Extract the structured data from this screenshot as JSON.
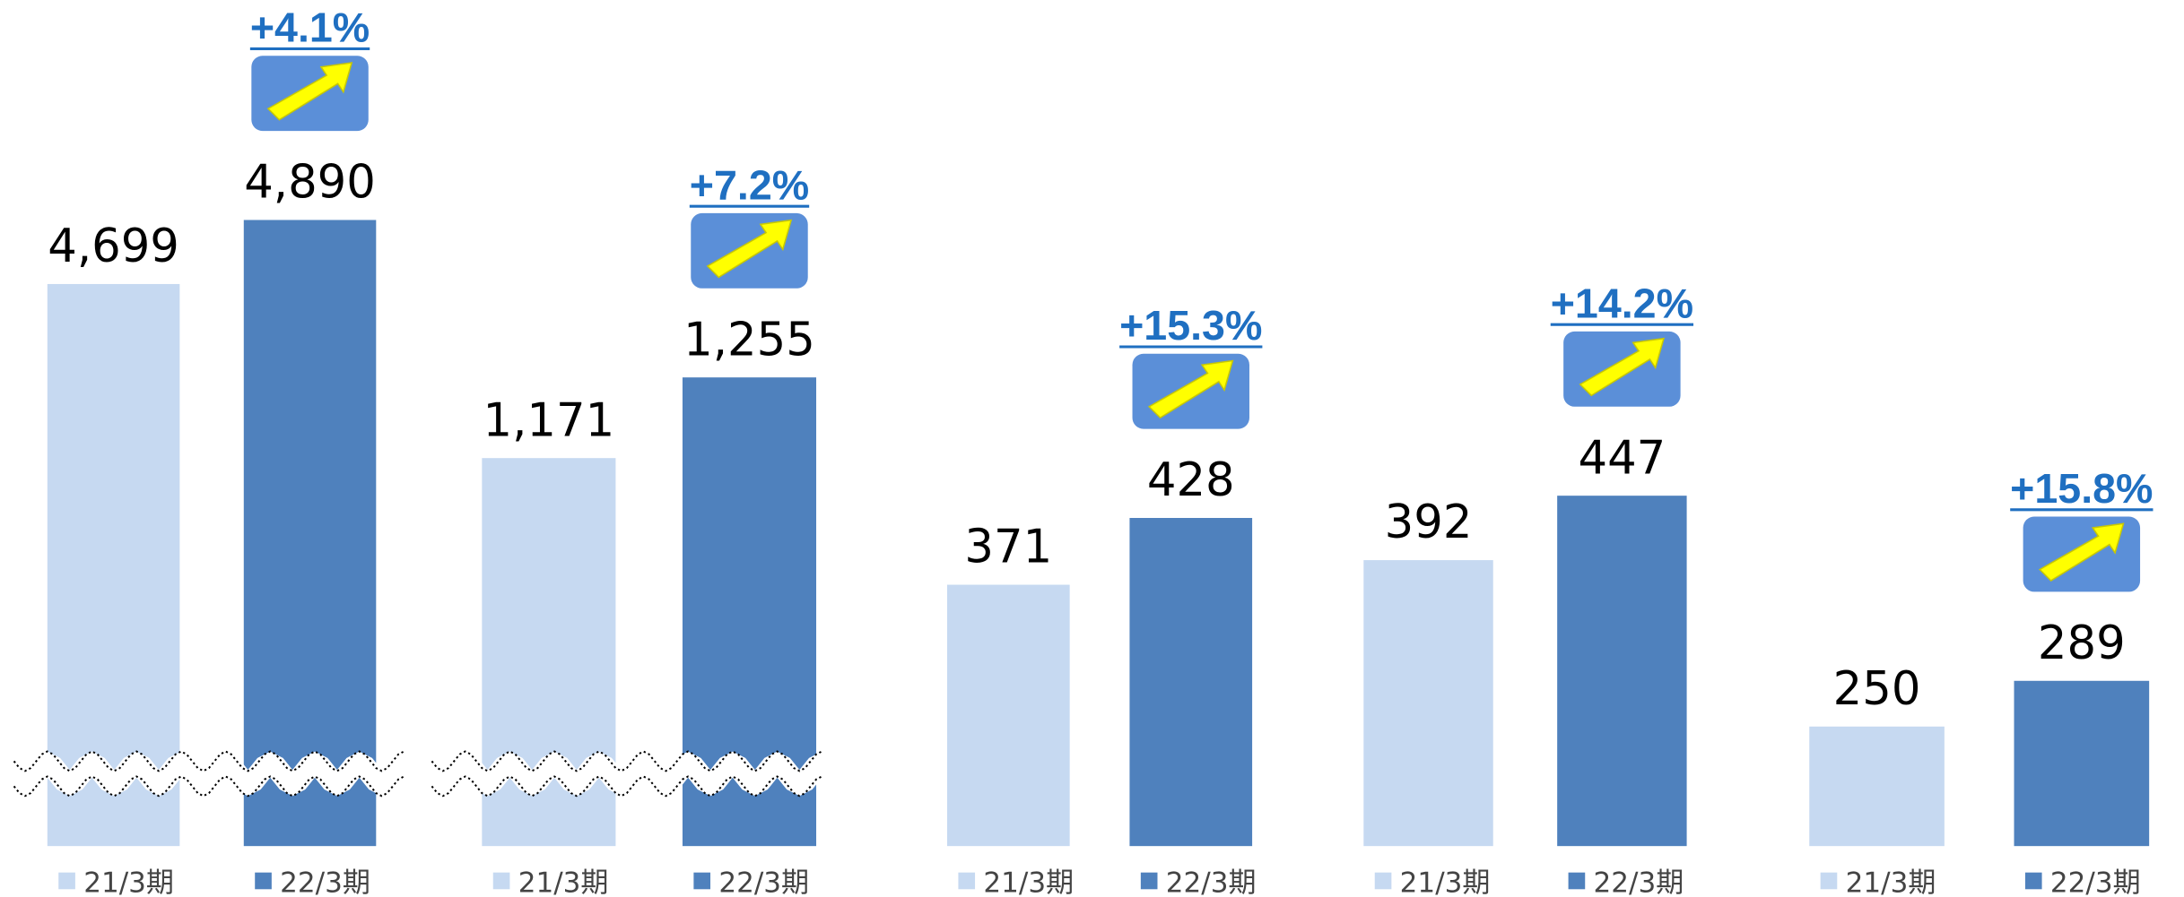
{
  "chart_data": [
    {
      "type": "bar",
      "categories": [
        "21/3期",
        "22/3期"
      ],
      "values": [
        4699,
        4890
      ],
      "value_labels": [
        "4,699",
        "4,890"
      ],
      "annotation": "+4.1%",
      "colors": [
        "#c6d9f1",
        "#4f81bd"
      ],
      "ylim": [
        3023,
        5546
      ],
      "axis_break": true
    },
    {
      "type": "bar",
      "categories": [
        "21/3期",
        "22/3期"
      ],
      "values": [
        1171,
        1255
      ],
      "value_labels": [
        "1,171",
        "1,255"
      ],
      "annotation": "+7.2%",
      "colors": [
        "#c6d9f1",
        "#4f81bd"
      ],
      "ylim": [
        767,
        1648
      ],
      "axis_break": true
    },
    {
      "type": "bar",
      "categories": [
        "21/3期",
        "22/3期"
      ],
      "values": [
        371,
        428
      ],
      "annotation": "+15.3%",
      "colors": [
        "#c6d9f1",
        "#4f81bd"
      ],
      "ylim": [
        148,
        870
      ],
      "axis_break": false
    },
    {
      "type": "bar",
      "categories": [
        "21/3期",
        "22/3期"
      ],
      "values": [
        392,
        447
      ],
      "annotation": "+14.2%",
      "colors": [
        "#c6d9f1",
        "#4f81bd"
      ],
      "ylim": [
        148,
        870
      ],
      "axis_break": false
    },
    {
      "type": "bar",
      "categories": [
        "21/3期",
        "22/3期"
      ],
      "values": [
        250,
        289
      ],
      "annotation": "+15.8%",
      "colors": [
        "#c6d9f1",
        "#4f81bd"
      ],
      "ylim": [
        148,
        870
      ],
      "axis_break": false
    }
  ]
}
